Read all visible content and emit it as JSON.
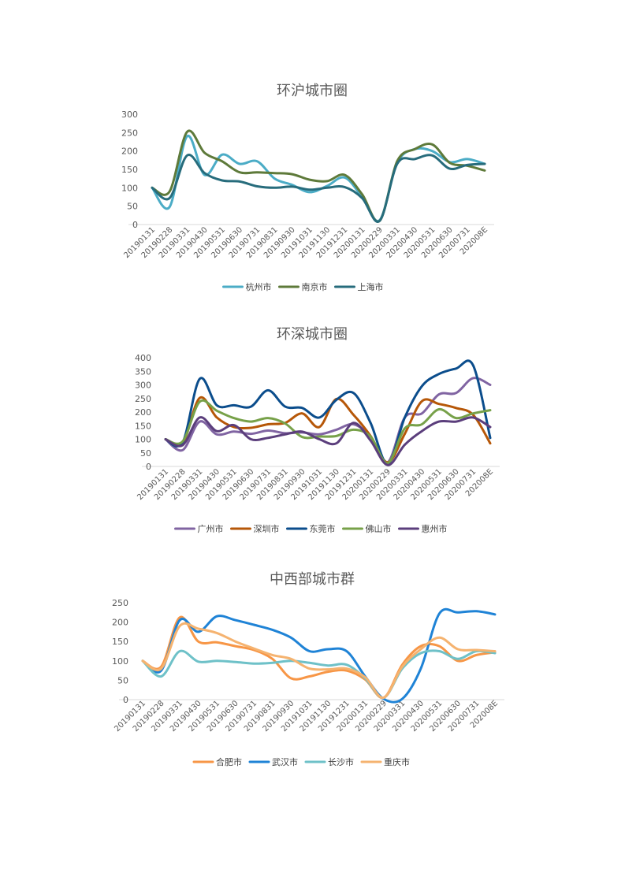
{
  "chart_data": [
    {
      "type": "line",
      "title": "环沪城市圈",
      "categories": [
        "20190131",
        "20190228",
        "20190331",
        "20190430",
        "20190531",
        "20190630",
        "20190731",
        "20190831",
        "20190930",
        "20191031",
        "20191130",
        "20191231",
        "20200131",
        "20200229",
        "20200331",
        "20200430",
        "20200531",
        "20200630",
        "20200731",
        "202008E"
      ],
      "ylim": [
        0,
        300
      ],
      "yticks": [
        0,
        50,
        100,
        150,
        200,
        250,
        300
      ],
      "series": [
        {
          "name": "杭州市",
          "color": "#4BACC6",
          "values": [
            100,
            48,
            240,
            135,
            190,
            165,
            172,
            125,
            108,
            88,
            105,
            128,
            75,
            12,
            168,
            205,
            200,
            170,
            178,
            165
          ]
        },
        {
          "name": "南京市",
          "color": "#5E7A3A",
          "values": [
            100,
            90,
            252,
            195,
            172,
            142,
            142,
            140,
            137,
            122,
            118,
            135,
            82,
            10,
            172,
            205,
            218,
            168,
            160,
            147
          ]
        },
        {
          "name": "上海市",
          "color": "#276C7C",
          "values": [
            100,
            72,
            188,
            140,
            120,
            117,
            104,
            100,
            103,
            95,
            100,
            102,
            72,
            10,
            165,
            178,
            188,
            152,
            162,
            165
          ]
        }
      ]
    },
    {
      "type": "line",
      "title": "环深城市圈",
      "categories": [
        "20190131",
        "20190228",
        "20190331",
        "20190430",
        "20190531",
        "20190630",
        "20190731",
        "20190831",
        "20190930",
        "20191031",
        "20191130",
        "20191231",
        "20200131",
        "20200229",
        "20200331",
        "20200430",
        "20200531",
        "20200630",
        "20200731",
        "202008E"
      ],
      "ylim": [
        0,
        400
      ],
      "yticks": [
        0,
        50,
        100,
        150,
        200,
        250,
        300,
        350,
        400
      ],
      "series": [
        {
          "name": "广州市",
          "color": "#8064A2",
          "values": [
            100,
            60,
            165,
            118,
            128,
            120,
            132,
            122,
            125,
            118,
            135,
            155,
            110,
            15,
            180,
            195,
            265,
            270,
            325,
            300
          ]
        },
        {
          "name": "深圳市",
          "color": "#B65708",
          "values": [
            100,
            85,
            252,
            180,
            145,
            142,
            155,
            160,
            195,
            145,
            248,
            190,
            112,
            15,
            120,
            240,
            230,
            215,
            190,
            85
          ]
        },
        {
          "name": "东莞市",
          "color": "#0B4D8C",
          "values": [
            100,
            88,
            322,
            225,
            225,
            220,
            280,
            220,
            215,
            180,
            245,
            270,
            160,
            10,
            180,
            295,
            340,
            360,
            372,
            105
          ]
        },
        {
          "name": "佛山市",
          "color": "#77A149",
          "values": [
            100,
            92,
            238,
            205,
            178,
            165,
            178,
            158,
            108,
            110,
            112,
            135,
            110,
            12,
            140,
            155,
            210,
            178,
            195,
            207
          ]
        },
        {
          "name": "惠州市",
          "color": "#5B3E7C",
          "values": [
            100,
            78,
            180,
            130,
            152,
            100,
            105,
            118,
            128,
            100,
            85,
            160,
            95,
            5,
            80,
            130,
            165,
            165,
            180,
            145
          ]
        }
      ]
    },
    {
      "type": "line",
      "title": "中西部城市群",
      "categories": [
        "20190131",
        "20190228",
        "20190331",
        "20190430",
        "20190531",
        "20190630",
        "20190731",
        "20190831",
        "20190930",
        "20191031",
        "20191130",
        "20191231",
        "20200131",
        "20200229",
        "20200331",
        "20200430",
        "20200531",
        "20200630",
        "20200731",
        "202008E"
      ],
      "ylim": [
        0,
        250
      ],
      "yticks": [
        0,
        50,
        100,
        150,
        200,
        250
      ],
      "series": [
        {
          "name": "合肥市",
          "color": "#F79646",
          "values": [
            100,
            85,
            212,
            150,
            148,
            138,
            128,
            105,
            55,
            60,
            72,
            75,
            52,
            5,
            90,
            138,
            138,
            100,
            115,
            122
          ]
        },
        {
          "name": "武汉市",
          "color": "#1F83D6",
          "values": [
            100,
            75,
            205,
            175,
            215,
            205,
            193,
            180,
            160,
            125,
            130,
            125,
            60,
            2,
            2,
            80,
            222,
            225,
            228,
            220
          ]
        },
        {
          "name": "长沙市",
          "color": "#6EC1C8",
          "values": [
            100,
            60,
            125,
            98,
            100,
            97,
            93,
            95,
            100,
            95,
            88,
            90,
            55,
            5,
            80,
            120,
            125,
            105,
            125,
            120
          ]
        },
        {
          "name": "重庆市",
          "color": "#F5B370",
          "values": [
            100,
            80,
            190,
            183,
            172,
            150,
            132,
            115,
            105,
            80,
            78,
            80,
            58,
            5,
            85,
            130,
            160,
            130,
            128,
            125
          ]
        }
      ]
    }
  ]
}
